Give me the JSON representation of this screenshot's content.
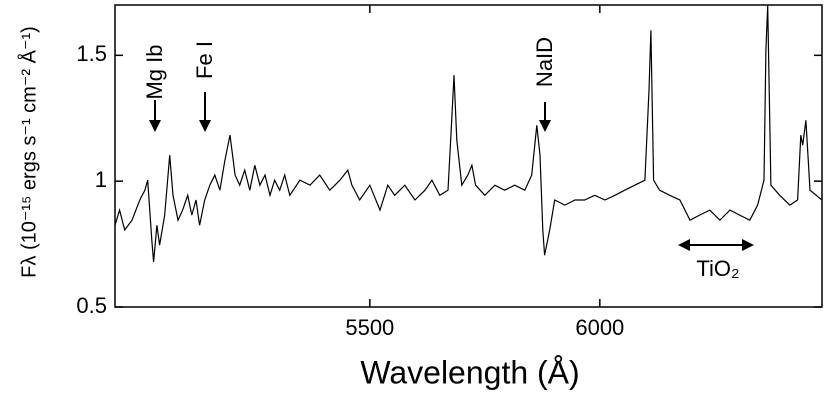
{
  "chart_data": {
    "type": "line",
    "xlabel": "Wavelength  (Å)",
    "ylabel": "Fλ (10⁻¹⁵ ergs s⁻¹ cm⁻² Å⁻¹)",
    "annotations": [
      "Mg Ib",
      "Fe I",
      "NaID",
      "TiO₂"
    ],
    "xlim": [
      4946,
      6483
    ],
    "ylim": [
      0.5,
      1.7
    ],
    "xticks": [
      5500,
      6000
    ],
    "yticks": [
      0.5,
      1,
      1.5
    ],
    "color": "#000000",
    "x": [
      4946,
      4956,
      4967,
      4983,
      5000,
      5011,
      5017,
      5026,
      5030,
      5037,
      5043,
      5054,
      5065,
      5072,
      5083,
      5093,
      5104,
      5113,
      5122,
      5130,
      5141,
      5152,
      5163,
      5174,
      5185,
      5196,
      5207,
      5217,
      5228,
      5239,
      5250,
      5261,
      5272,
      5283,
      5293,
      5304,
      5315,
      5326,
      5348,
      5370,
      5391,
      5413,
      5435,
      5452,
      5461,
      5478,
      5500,
      5522,
      5539,
      5554,
      5576,
      5598,
      5620,
      5635,
      5652,
      5670,
      5678,
      5683,
      5689,
      5700,
      5713,
      5722,
      5730,
      5750,
      5772,
      5793,
      5815,
      5837,
      5852,
      5863,
      5870,
      5876,
      5880,
      5891,
      5902,
      5924,
      5946,
      5967,
      5989,
      6011,
      6033,
      6054,
      6076,
      6098,
      6107,
      6111,
      6117,
      6130,
      6152,
      6174,
      6196,
      6217,
      6239,
      6261,
      6283,
      6304,
      6326,
      6343,
      6357,
      6361,
      6365,
      6372,
      6391,
      6413,
      6430,
      6437,
      6441,
      6448,
      6457,
      6483
    ],
    "values": [
      0.825,
      0.885,
      0.806,
      0.845,
      0.925,
      0.964,
      1.004,
      0.766,
      0.679,
      0.825,
      0.746,
      0.865,
      1.103,
      0.944,
      0.845,
      0.885,
      0.944,
      0.865,
      0.925,
      0.825,
      0.925,
      0.984,
      1.024,
      0.964,
      1.083,
      1.183,
      1.024,
      0.984,
      1.044,
      0.964,
      1.063,
      0.984,
      1.024,
      0.944,
      1.004,
      0.964,
      1.024,
      0.944,
      1.004,
      0.984,
      1.024,
      0.964,
      1.004,
      1.044,
      0.984,
      0.925,
      0.984,
      0.885,
      0.984,
      0.944,
      0.984,
      0.925,
      0.964,
      1.004,
      0.944,
      0.964,
      1.242,
      1.421,
      1.163,
      0.984,
      1.024,
      1.063,
      0.984,
      0.944,
      0.984,
      0.964,
      0.984,
      0.964,
      1.024,
      1.222,
      1.103,
      0.806,
      0.706,
      0.806,
      0.925,
      0.905,
      0.925,
      0.925,
      0.944,
      0.925,
      0.944,
      0.964,
      0.984,
      1.004,
      1.361,
      1.599,
      1.004,
      0.964,
      0.944,
      0.925,
      0.845,
      0.865,
      0.885,
      0.845,
      0.885,
      0.865,
      0.845,
      0.905,
      1.004,
      1.52,
      1.698,
      0.984,
      0.944,
      0.905,
      0.925,
      1.183,
      1.143,
      1.242,
      0.964,
      0.925
    ]
  }
}
